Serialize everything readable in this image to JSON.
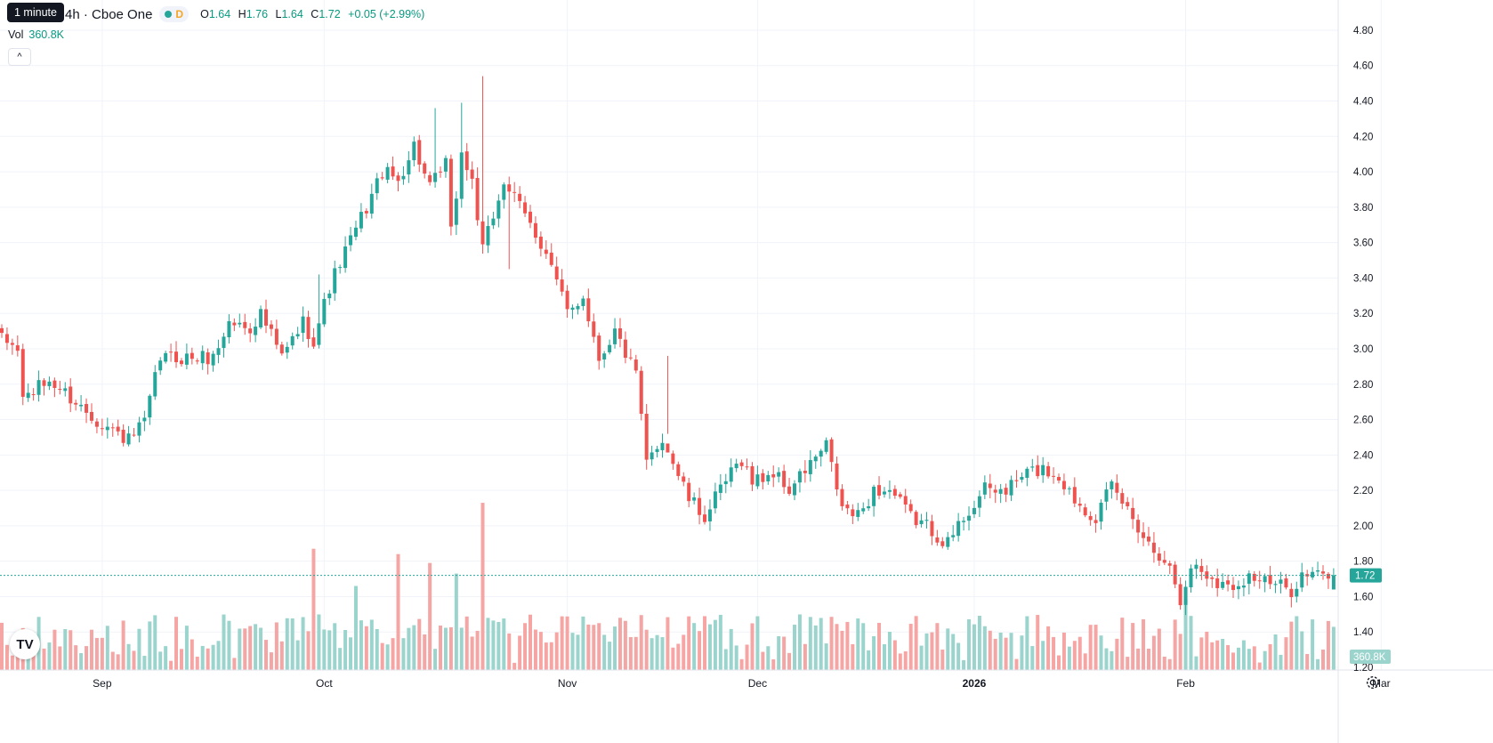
{
  "legend": {
    "title": "ital, Inc. · 4h · Cboe One",
    "o_label": "O",
    "o": "1.64",
    "h_label": "H",
    "h": "1.76",
    "l_label": "L",
    "l": "1.64",
    "c_label": "C",
    "c": "1.72",
    "change": "+0.05 (+2.99%)",
    "d_badge": "D"
  },
  "tooltip": "1 minute",
  "volume": {
    "label": "Vol",
    "value": "360.8K"
  },
  "collapse_icon": "chevron-up-icon",
  "logo_text": "TV",
  "colors": {
    "up": "#26a69a",
    "down": "#ef5350",
    "vol_up": "#9bd4cd",
    "vol_down": "#f5a6a4",
    "grid": "#f0f3fa",
    "last_line": "#26a69a"
  },
  "price_badge": "1.72",
  "volume_badge": "360.8K",
  "chart_data": {
    "type": "candlestick",
    "title": "",
    "y_ticks": [
      "1.20",
      "1.40",
      "1.60",
      "1.80",
      "2.00",
      "2.20",
      "2.40",
      "2.60",
      "2.80",
      "3.00",
      "3.20",
      "3.40",
      "3.60",
      "3.80",
      "4.00",
      "4.20",
      "4.40",
      "4.60",
      "4.80"
    ],
    "ylim": [
      1.2,
      4.85
    ],
    "x_ticks": [
      {
        "label": "Sep",
        "index": 19,
        "bold": false
      },
      {
        "label": "Oct",
        "index": 61,
        "bold": false
      },
      {
        "label": "Nov",
        "index": 107,
        "bold": false
      },
      {
        "label": "Dec",
        "index": 143,
        "bold": false
      },
      {
        "label": "2026",
        "index": 184,
        "bold": true
      },
      {
        "label": "Feb",
        "index": 224,
        "bold": false
      },
      {
        "label": "Mar",
        "index": 261,
        "bold": false
      }
    ],
    "last_price": 1.72,
    "grid": true,
    "candle_count": 253,
    "anchors": [
      [
        0,
        3.05
      ],
      [
        3,
        3.0
      ],
      [
        4,
        2.72
      ],
      [
        9,
        2.82
      ],
      [
        12,
        2.75
      ],
      [
        17,
        2.62
      ],
      [
        19,
        2.58
      ],
      [
        22,
        2.52
      ],
      [
        24,
        2.48
      ],
      [
        27,
        2.58
      ],
      [
        30,
        2.95
      ],
      [
        35,
        2.95
      ],
      [
        40,
        2.95
      ],
      [
        43,
        3.15
      ],
      [
        47,
        3.12
      ],
      [
        49,
        3.2
      ],
      [
        53,
        2.95
      ],
      [
        57,
        3.15
      ],
      [
        59,
        3.05
      ],
      [
        62,
        3.35
      ],
      [
        65,
        3.55
      ],
      [
        69,
        3.8
      ],
      [
        72,
        4.0
      ],
      [
        75,
        3.95
      ],
      [
        78,
        4.15
      ],
      [
        81,
        3.9
      ],
      [
        84,
        4.05
      ],
      [
        85,
        3.65
      ],
      [
        87,
        4.1
      ],
      [
        89,
        3.95
      ],
      [
        91,
        3.55
      ],
      [
        95,
        3.95
      ],
      [
        97,
        3.85
      ],
      [
        100,
        3.7
      ],
      [
        103,
        3.55
      ],
      [
        107,
        3.2
      ],
      [
        110,
        3.3
      ],
      [
        113,
        2.95
      ],
      [
        116,
        3.1
      ],
      [
        120,
        2.85
      ],
      [
        122,
        2.35
      ],
      [
        125,
        2.5
      ],
      [
        130,
        2.15
      ],
      [
        133,
        2.05
      ],
      [
        137,
        2.25
      ],
      [
        140,
        2.38
      ],
      [
        142,
        2.25
      ],
      [
        146,
        2.3
      ],
      [
        149,
        2.2
      ],
      [
        153,
        2.35
      ],
      [
        156,
        2.45
      ],
      [
        159,
        2.1
      ],
      [
        162,
        2.05
      ],
      [
        165,
        2.2
      ],
      [
        168,
        2.2
      ],
      [
        172,
        2.05
      ],
      [
        175,
        2.0
      ],
      [
        179,
        1.9
      ],
      [
        182,
        2.05
      ],
      [
        186,
        2.2
      ],
      [
        190,
        2.2
      ],
      [
        194,
        2.3
      ],
      [
        197,
        2.32
      ],
      [
        200,
        2.28
      ],
      [
        203,
        2.15
      ],
      [
        207,
        2.05
      ],
      [
        210,
        2.22
      ],
      [
        214,
        2.05
      ],
      [
        217,
        1.9
      ],
      [
        220,
        1.82
      ],
      [
        222,
        1.68
      ],
      [
        223,
        1.55
      ],
      [
        225,
        1.78
      ],
      [
        228,
        1.73
      ],
      [
        232,
        1.65
      ],
      [
        236,
        1.72
      ],
      [
        240,
        1.67
      ],
      [
        244,
        1.64
      ],
      [
        246,
        1.72
      ]
    ],
    "spikes": [
      {
        "index": 60,
        "high": 3.42
      },
      {
        "index": 82,
        "high": 4.36
      },
      {
        "index": 87,
        "high": 4.39
      },
      {
        "index": 91,
        "high": 4.54
      },
      {
        "index": 96,
        "low": 3.45
      },
      {
        "index": 126,
        "low": 2.96
      }
    ],
    "volume_scale_max": 2.13,
    "volume_spikes": [
      {
        "index": 59,
        "value": 1.87
      },
      {
        "index": 67,
        "value": 1.66
      },
      {
        "index": 75,
        "value": 1.84
      },
      {
        "index": 81,
        "value": 1.79
      },
      {
        "index": 86,
        "value": 1.73
      },
      {
        "index": 91,
        "value": 2.13
      },
      {
        "index": 224,
        "value": 1.59
      }
    ]
  }
}
